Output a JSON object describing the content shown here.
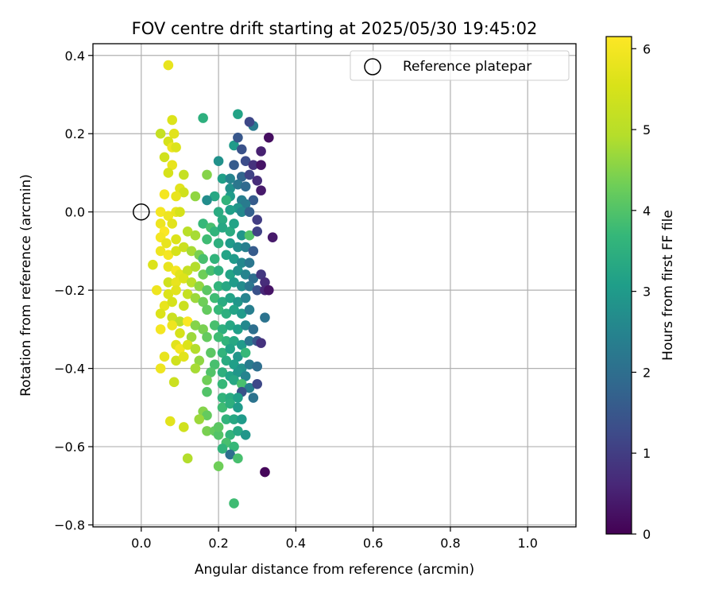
{
  "chart_data": {
    "type": "scatter",
    "title": "FOV centre drift starting at 2025/05/30 19:45:02",
    "xlabel": "Angular distance from reference (arcmin)",
    "ylabel": "Rotation from reference (arcmin)",
    "xlim": [
      -0.125,
      1.125
    ],
    "ylim": [
      -0.805,
      0.43
    ],
    "xticks": [
      0.0,
      0.2,
      0.4,
      0.6,
      0.8,
      1.0
    ],
    "xtick_labels": [
      "0.0",
      "0.2",
      "0.4",
      "0.6",
      "0.8",
      "1.0"
    ],
    "yticks": [
      0.4,
      0.2,
      0.0,
      -0.2,
      -0.4,
      -0.6,
      -0.8
    ],
    "ytick_labels": [
      "0.4",
      "0.2",
      "0.0",
      "−0.2",
      "−0.4",
      "−0.6",
      "−0.8"
    ],
    "grid": true,
    "legend": {
      "placement": "top-right",
      "entries": [
        {
          "label": "Reference platepar",
          "marker": "open-circle",
          "x": 0.0,
          "y": 0.0
        }
      ]
    },
    "colorbar": {
      "label": "Hours from first FF file",
      "colormap": "viridis",
      "range": [
        0,
        6.15
      ],
      "ticks": [
        0,
        1,
        2,
        3,
        4,
        5,
        6
      ],
      "tick_labels": [
        "0",
        "1",
        "2",
        "3",
        "4",
        "5",
        "6"
      ]
    },
    "series": [
      {
        "columns": [
          "x",
          "y",
          "hours"
        ],
        "points": [
          [
            0.07,
            0.375,
            5.8
          ],
          [
            0.08,
            0.235,
            5.6
          ],
          [
            0.29,
            0.22,
            2.3
          ],
          [
            0.25,
            0.25,
            3.2
          ],
          [
            0.16,
            0.24,
            3.5
          ],
          [
            0.28,
            0.23,
            1.2
          ],
          [
            0.33,
            0.19,
            0.2
          ],
          [
            0.05,
            0.2,
            5.2
          ],
          [
            0.085,
            0.2,
            5.7
          ],
          [
            0.24,
            0.17,
            3.0
          ],
          [
            0.25,
            0.19,
            1.5
          ],
          [
            0.31,
            0.155,
            0.5
          ],
          [
            0.07,
            0.18,
            5.5
          ],
          [
            0.08,
            0.165,
            5.9
          ],
          [
            0.09,
            0.165,
            5.6
          ],
          [
            0.06,
            0.14,
            5.4
          ],
          [
            0.08,
            0.12,
            5.8
          ],
          [
            0.26,
            0.16,
            1.4
          ],
          [
            0.2,
            0.13,
            2.8
          ],
          [
            0.24,
            0.12,
            1.6
          ],
          [
            0.27,
            0.13,
            1.3
          ],
          [
            0.29,
            0.12,
            0.8
          ],
          [
            0.31,
            0.12,
            0.3
          ],
          [
            0.07,
            0.1,
            5.5
          ],
          [
            0.11,
            0.095,
            5.2
          ],
          [
            0.17,
            0.095,
            4.5
          ],
          [
            0.21,
            0.085,
            3.1
          ],
          [
            0.23,
            0.085,
            2.5
          ],
          [
            0.26,
            0.09,
            1.8
          ],
          [
            0.28,
            0.095,
            1.1
          ],
          [
            0.3,
            0.08,
            0.7
          ],
          [
            0.23,
            0.06,
            2.8
          ],
          [
            0.25,
            0.07,
            2.2
          ],
          [
            0.27,
            0.065,
            1.9
          ],
          [
            0.31,
            0.055,
            0.4
          ],
          [
            0.1,
            0.06,
            5.7
          ],
          [
            0.11,
            0.05,
            5.4
          ],
          [
            0.09,
            0.04,
            5.8
          ],
          [
            0.06,
            0.045,
            6.0
          ],
          [
            0.14,
            0.04,
            4.6
          ],
          [
            0.19,
            0.04,
            3.3
          ],
          [
            0.23,
            0.04,
            3.0
          ],
          [
            0.26,
            0.03,
            2.4
          ],
          [
            0.29,
            0.03,
            1.6
          ],
          [
            0.17,
            0.03,
            2.7
          ],
          [
            0.22,
            0.03,
            3.6
          ],
          [
            0.27,
            0.02,
            2.3
          ],
          [
            0.25,
            0.01,
            2.9
          ],
          [
            0.2,
            0.0,
            3.4
          ],
          [
            0.23,
            0.005,
            3.1
          ],
          [
            0.26,
            0.0,
            2.6
          ],
          [
            0.28,
            0.0,
            1.7
          ],
          [
            0.21,
            -0.02,
            3.4
          ],
          [
            0.3,
            -0.02,
            1.0
          ],
          [
            0.05,
            0.0,
            6.0
          ],
          [
            0.07,
            -0.01,
            5.9
          ],
          [
            0.09,
            0.0,
            5.8
          ],
          [
            0.1,
            0.0,
            5.5
          ],
          [
            0.05,
            -0.03,
            5.9
          ],
          [
            0.08,
            -0.03,
            5.7
          ],
          [
            0.06,
            -0.05,
            6.1
          ],
          [
            0.05,
            -0.065,
            6.0
          ],
          [
            0.065,
            -0.08,
            5.8
          ],
          [
            0.09,
            -0.07,
            5.6
          ],
          [
            0.12,
            -0.05,
            5.0
          ],
          [
            0.14,
            -0.06,
            4.8
          ],
          [
            0.16,
            -0.03,
            3.7
          ],
          [
            0.18,
            -0.04,
            3.9
          ],
          [
            0.19,
            -0.05,
            3.6
          ],
          [
            0.21,
            -0.04,
            3.3
          ],
          [
            0.23,
            -0.05,
            3.4
          ],
          [
            0.24,
            -0.03,
            3.2
          ],
          [
            0.26,
            -0.06,
            2.9
          ],
          [
            0.28,
            -0.06,
            4.0
          ],
          [
            0.3,
            -0.05,
            1.1
          ],
          [
            0.34,
            -0.065,
            0.4
          ],
          [
            0.17,
            -0.07,
            3.8
          ],
          [
            0.2,
            -0.08,
            3.5
          ],
          [
            0.23,
            -0.08,
            3.0
          ],
          [
            0.25,
            -0.09,
            2.7
          ],
          [
            0.27,
            -0.09,
            2.4
          ],
          [
            0.29,
            -0.1,
            1.6
          ],
          [
            0.05,
            -0.1,
            5.9
          ],
          [
            0.07,
            -0.11,
            6.0
          ],
          [
            0.09,
            -0.1,
            5.5
          ],
          [
            0.11,
            -0.09,
            5.3
          ],
          [
            0.13,
            -0.1,
            4.8
          ],
          [
            0.15,
            -0.11,
            4.4
          ],
          [
            0.16,
            -0.12,
            3.9
          ],
          [
            0.19,
            -0.12,
            3.6
          ],
          [
            0.22,
            -0.11,
            3.2
          ],
          [
            0.24,
            -0.12,
            3.0
          ],
          [
            0.26,
            -0.13,
            2.6
          ],
          [
            0.28,
            -0.13,
            2.2
          ],
          [
            0.03,
            -0.135,
            5.6
          ],
          [
            0.07,
            -0.14,
            5.8
          ],
          [
            0.09,
            -0.15,
            6.0
          ],
          [
            0.1,
            -0.16,
            5.7
          ],
          [
            0.12,
            -0.15,
            5.2
          ],
          [
            0.14,
            -0.14,
            4.9
          ],
          [
            0.16,
            -0.16,
            4.3
          ],
          [
            0.18,
            -0.15,
            3.9
          ],
          [
            0.2,
            -0.15,
            3.5
          ],
          [
            0.23,
            -0.16,
            3.2
          ],
          [
            0.25,
            -0.15,
            2.8
          ],
          [
            0.27,
            -0.16,
            2.5
          ],
          [
            0.29,
            -0.17,
            2.0
          ],
          [
            0.31,
            -0.16,
            0.9
          ],
          [
            0.07,
            -0.18,
            5.4
          ],
          [
            0.09,
            -0.18,
            5.8
          ],
          [
            0.11,
            -0.17,
            5.6
          ],
          [
            0.13,
            -0.18,
            5.0
          ],
          [
            0.15,
            -0.19,
            4.6
          ],
          [
            0.17,
            -0.2,
            4.1
          ],
          [
            0.2,
            -0.19,
            3.6
          ],
          [
            0.22,
            -0.19,
            3.3
          ],
          [
            0.24,
            -0.18,
            3.0
          ],
          [
            0.26,
            -0.19,
            2.7
          ],
          [
            0.28,
            -0.19,
            2.2
          ],
          [
            0.32,
            -0.18,
            0.7
          ],
          [
            0.04,
            -0.2,
            5.9
          ],
          [
            0.07,
            -0.21,
            5.6
          ],
          [
            0.09,
            -0.2,
            5.7
          ],
          [
            0.12,
            -0.21,
            5.2
          ],
          [
            0.14,
            -0.22,
            4.7
          ],
          [
            0.16,
            -0.23,
            4.3
          ],
          [
            0.19,
            -0.22,
            3.8
          ],
          [
            0.21,
            -0.23,
            3.4
          ],
          [
            0.23,
            -0.22,
            3.2
          ],
          [
            0.25,
            -0.23,
            2.9
          ],
          [
            0.27,
            -0.22,
            2.5
          ],
          [
            0.3,
            -0.2,
            1.4
          ],
          [
            0.32,
            -0.2,
            0.6
          ],
          [
            0.33,
            -0.2,
            0.3
          ],
          [
            0.06,
            -0.24,
            5.8
          ],
          [
            0.08,
            -0.23,
            5.5
          ],
          [
            0.11,
            -0.24,
            5.3
          ],
          [
            0.17,
            -0.25,
            4.2
          ],
          [
            0.2,
            -0.25,
            3.7
          ],
          [
            0.22,
            -0.26,
            3.5
          ],
          [
            0.24,
            -0.25,
            3.2
          ],
          [
            0.26,
            -0.26,
            3.0
          ],
          [
            0.28,
            -0.25,
            2.4
          ],
          [
            0.05,
            -0.26,
            5.6
          ],
          [
            0.08,
            -0.27,
            5.3
          ],
          [
            0.1,
            -0.28,
            5.0
          ],
          [
            0.12,
            -0.28,
            6.1
          ],
          [
            0.14,
            -0.29,
            4.5
          ],
          [
            0.16,
            -0.3,
            4.4
          ],
          [
            0.19,
            -0.29,
            3.9
          ],
          [
            0.21,
            -0.3,
            3.5
          ],
          [
            0.23,
            -0.29,
            3.3
          ],
          [
            0.25,
            -0.3,
            3.1
          ],
          [
            0.27,
            -0.29,
            2.6
          ],
          [
            0.29,
            -0.3,
            2.0
          ],
          [
            0.32,
            -0.27,
            2.1
          ],
          [
            0.05,
            -0.3,
            6.0
          ],
          [
            0.08,
            -0.29,
            5.9
          ],
          [
            0.1,
            -0.31,
            5.5
          ],
          [
            0.13,
            -0.32,
            4.7
          ],
          [
            0.17,
            -0.32,
            4.2
          ],
          [
            0.2,
            -0.32,
            3.8
          ],
          [
            0.22,
            -0.33,
            3.6
          ],
          [
            0.24,
            -0.33,
            3.3
          ],
          [
            0.26,
            -0.34,
            3.0
          ],
          [
            0.28,
            -0.33,
            2.2
          ],
          [
            0.3,
            -0.33,
            1.5
          ],
          [
            0.31,
            -0.335,
            0.8
          ],
          [
            0.09,
            -0.34,
            5.7
          ],
          [
            0.1,
            -0.35,
            6.0
          ],
          [
            0.12,
            -0.34,
            5.6
          ],
          [
            0.14,
            -0.35,
            4.9
          ],
          [
            0.18,
            -0.36,
            4.1
          ],
          [
            0.21,
            -0.36,
            3.6
          ],
          [
            0.23,
            -0.35,
            3.2
          ],
          [
            0.25,
            -0.37,
            2.9
          ],
          [
            0.27,
            -0.36,
            3.7
          ],
          [
            0.06,
            -0.37,
            5.8
          ],
          [
            0.09,
            -0.38,
            5.4
          ],
          [
            0.11,
            -0.37,
            5.7
          ],
          [
            0.15,
            -0.38,
            4.6
          ],
          [
            0.19,
            -0.39,
            3.9
          ],
          [
            0.22,
            -0.38,
            3.4
          ],
          [
            0.24,
            -0.39,
            3.1
          ],
          [
            0.26,
            -0.4,
            2.8
          ],
          [
            0.28,
            -0.39,
            2.3
          ],
          [
            0.3,
            -0.395,
            2.0
          ],
          [
            0.05,
            -0.4,
            5.9
          ],
          [
            0.14,
            -0.4,
            4.8
          ],
          [
            0.18,
            -0.41,
            4.0
          ],
          [
            0.21,
            -0.41,
            3.5
          ],
          [
            0.23,
            -0.42,
            3.2
          ],
          [
            0.25,
            -0.41,
            2.9
          ],
          [
            0.27,
            -0.42,
            2.5
          ],
          [
            0.17,
            -0.43,
            4.3
          ],
          [
            0.21,
            -0.44,
            3.7
          ],
          [
            0.24,
            -0.43,
            3.3
          ],
          [
            0.26,
            -0.44,
            3.9
          ],
          [
            0.28,
            -0.45,
            2.4
          ],
          [
            0.3,
            -0.44,
            1.2
          ],
          [
            0.085,
            -0.435,
            5.3
          ],
          [
            0.17,
            -0.46,
            4.0
          ],
          [
            0.26,
            -0.46,
            1.4
          ],
          [
            0.21,
            -0.475,
            3.6
          ],
          [
            0.23,
            -0.475,
            3.4
          ],
          [
            0.25,
            -0.475,
            3.1
          ],
          [
            0.29,
            -0.475,
            2.1
          ],
          [
            0.21,
            -0.5,
            3.8
          ],
          [
            0.23,
            -0.49,
            3.5
          ],
          [
            0.25,
            -0.5,
            3.0
          ],
          [
            0.16,
            -0.51,
            4.5
          ],
          [
            0.17,
            -0.52,
            4.2
          ],
          [
            0.15,
            -0.53,
            4.7
          ],
          [
            0.22,
            -0.53,
            3.6
          ],
          [
            0.24,
            -0.53,
            3.3
          ],
          [
            0.26,
            -0.53,
            3.0
          ],
          [
            0.075,
            -0.535,
            5.7
          ],
          [
            0.11,
            -0.55,
            5.4
          ],
          [
            0.17,
            -0.56,
            4.4
          ],
          [
            0.19,
            -0.56,
            4.2
          ],
          [
            0.2,
            -0.57,
            4.0
          ],
          [
            0.23,
            -0.57,
            3.6
          ],
          [
            0.25,
            -0.56,
            3.3
          ],
          [
            0.27,
            -0.57,
            2.9
          ],
          [
            0.2,
            -0.55,
            4.1
          ],
          [
            0.22,
            -0.59,
            3.9
          ],
          [
            0.24,
            -0.6,
            3.7
          ],
          [
            0.23,
            -0.62,
            2.0
          ],
          [
            0.25,
            -0.63,
            3.9
          ],
          [
            0.12,
            -0.63,
            4.9
          ],
          [
            0.2,
            -0.65,
            4.3
          ],
          [
            0.32,
            -0.665,
            0.1
          ],
          [
            0.24,
            -0.745,
            3.8
          ],
          [
            0.21,
            -0.605,
            3.6
          ]
        ]
      }
    ]
  }
}
